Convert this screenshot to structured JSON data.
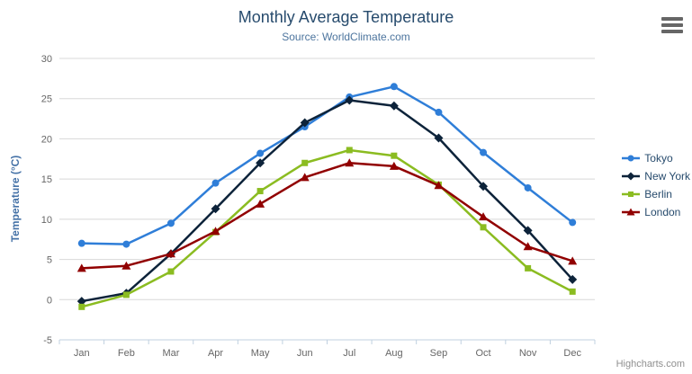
{
  "header": {
    "title": "Monthly Average Temperature",
    "subtitle": "Source: WorldClimate.com"
  },
  "chart_data": {
    "type": "line",
    "categories": [
      "Jan",
      "Feb",
      "Mar",
      "Apr",
      "May",
      "Jun",
      "Jul",
      "Aug",
      "Sep",
      "Oct",
      "Nov",
      "Dec"
    ],
    "series": [
      {
        "name": "Tokyo",
        "color": "#2f7ed8",
        "marker": "circle",
        "values": [
          7.0,
          6.9,
          9.5,
          14.5,
          18.2,
          21.5,
          25.2,
          26.5,
          23.3,
          18.3,
          13.9,
          9.6
        ]
      },
      {
        "name": "New York",
        "color": "#0d233a",
        "marker": "diamond",
        "values": [
          -0.2,
          0.8,
          5.7,
          11.3,
          17.0,
          22.0,
          24.8,
          24.1,
          20.1,
          14.1,
          8.6,
          2.5
        ]
      },
      {
        "name": "Berlin",
        "color": "#8bbc21",
        "marker": "square",
        "values": [
          -0.9,
          0.6,
          3.5,
          8.4,
          13.5,
          17.0,
          18.6,
          17.9,
          14.3,
          9.0,
          3.9,
          1.0
        ]
      },
      {
        "name": "London",
        "color": "#910000",
        "marker": "triangle",
        "values": [
          3.9,
          4.2,
          5.7,
          8.5,
          11.9,
          15.2,
          17.0,
          16.6,
          14.2,
          10.3,
          6.6,
          4.8
        ]
      }
    ],
    "title": "Monthly Average Temperature",
    "subtitle": "Source: WorldClimate.com",
    "xlabel": "",
    "ylabel": "Temperature (°C)",
    "ylim": [
      -5,
      30
    ],
    "ytick_step": 5,
    "grid": true,
    "legend_position": "right"
  },
  "theme": {
    "title_color": "#274b6d",
    "subtitle_color": "#4d759e",
    "axis_title_color": "#4572a7",
    "axis_label_color": "#666666",
    "gridline_color": "#d8d8d8",
    "axis_line_color": "#c0d0e0",
    "legend_text_color": "#274b6d",
    "credits_color": "#909090",
    "menu_icon_color": "#666666"
  },
  "menu": {
    "icon": "hamburger-icon"
  },
  "credits": {
    "label": "Highcharts.com"
  }
}
